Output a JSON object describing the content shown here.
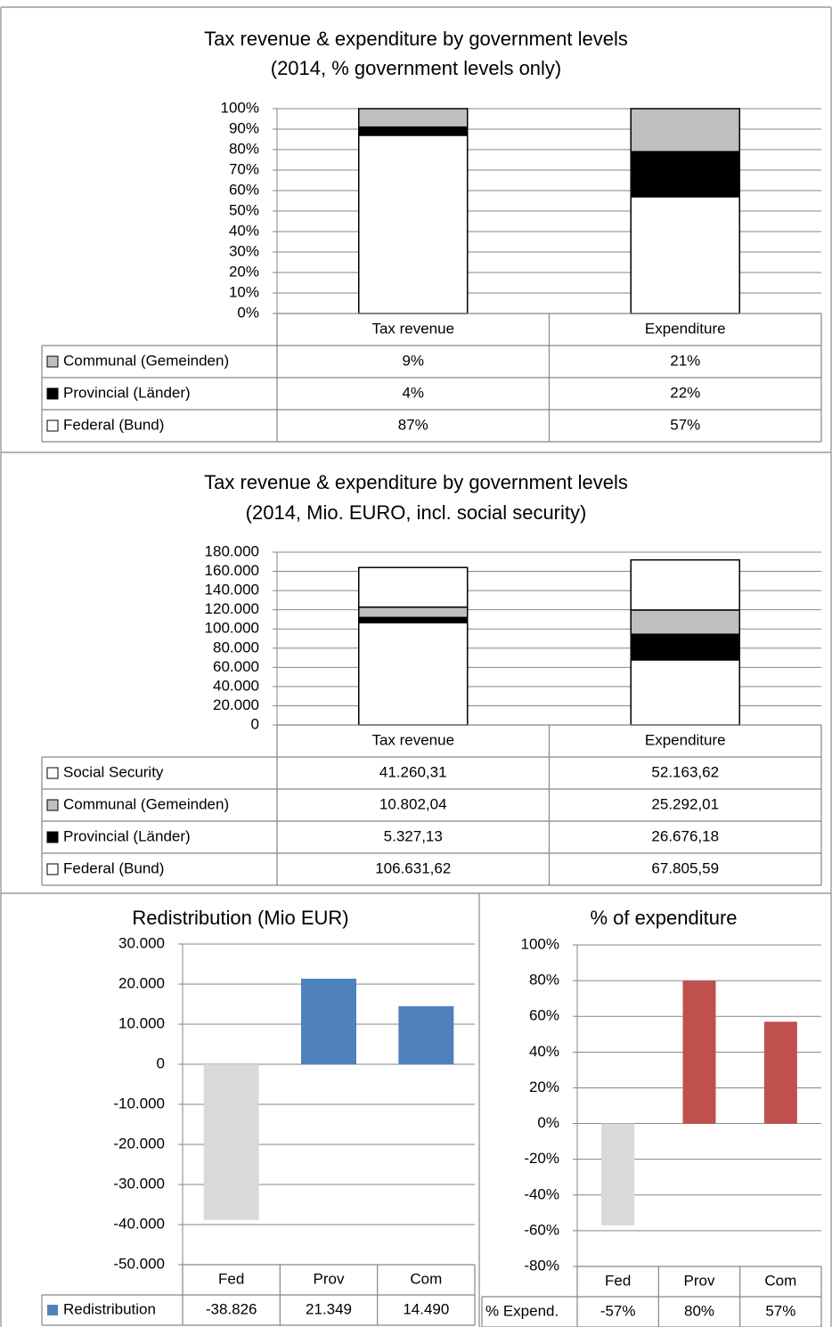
{
  "chart_data": [
    {
      "type": "stacked_bar",
      "title": "Tax revenue & expenditure by government levels",
      "subtitle": "(2014, % government levels only)",
      "categories": [
        "Tax revenue",
        "Expenditure"
      ],
      "series": [
        {
          "name": "Communal (Gemeinden)",
          "color": "#bfbfbf",
          "values": [
            9,
            21
          ],
          "value_labels": [
            "9%",
            "21%"
          ]
        },
        {
          "name": "Provincial (Länder)",
          "color": "#000000",
          "values": [
            4,
            22
          ],
          "value_labels": [
            "4%",
            "22%"
          ]
        },
        {
          "name": "Federal (Bund)",
          "color": "#ffffff",
          "values": [
            87,
            57
          ],
          "value_labels": [
            "87%",
            "57%"
          ]
        }
      ],
      "ylim": [
        0,
        100
      ],
      "yticks": [
        {
          "value": 0,
          "label": "0%"
        },
        {
          "value": 10,
          "label": "10%"
        },
        {
          "value": 20,
          "label": "20%"
        },
        {
          "value": 30,
          "label": "30%"
        },
        {
          "value": 40,
          "label": "40%"
        },
        {
          "value": 50,
          "label": "50%"
        },
        {
          "value": 60,
          "label": "60%"
        },
        {
          "value": 70,
          "label": "70%"
        },
        {
          "value": 80,
          "label": "80%"
        },
        {
          "value": 90,
          "label": "90%"
        },
        {
          "value": 100,
          "label": "100%"
        }
      ],
      "grid": true
    },
    {
      "type": "stacked_bar",
      "title": "Tax revenue & expenditure by government levels",
      "subtitle": "(2014, Mio. EURO, incl. social security)",
      "categories": [
        "Tax revenue",
        "Expenditure"
      ],
      "series": [
        {
          "name": "Social Security",
          "color": "#ffffff",
          "values": [
            41260.31,
            52163.62
          ],
          "value_labels": [
            "41.260,31",
            "52.163,62"
          ]
        },
        {
          "name": "Communal (Gemeinden)",
          "color": "#bfbfbf",
          "values": [
            10802.04,
            25292.01
          ],
          "value_labels": [
            "10.802,04",
            "25.292,01"
          ]
        },
        {
          "name": "Provincial (Länder)",
          "color": "#000000",
          "values": [
            5327.13,
            26676.18
          ],
          "value_labels": [
            "5.327,13",
            "26.676,18"
          ]
        },
        {
          "name": "Federal (Bund)",
          "color": "#ffffff",
          "values": [
            106631.62,
            67805.59
          ],
          "value_labels": [
            "106.631,62",
            "67.805,59"
          ]
        }
      ],
      "ylim": [
        0,
        180000
      ],
      "yticks": [
        0,
        {
          "value": 20000,
          "label": "20.000"
        },
        {
          "value": 40000,
          "label": "40.000"
        },
        {
          "value": 60000,
          "label": "60.000"
        },
        {
          "value": 80000,
          "label": "80.000"
        },
        {
          "value": 100000,
          "label": "100.000"
        },
        {
          "value": 120000,
          "label": "120.000"
        },
        {
          "value": 140000,
          "label": "140.000"
        },
        {
          "value": 160000,
          "label": "160.000"
        },
        {
          "value": 180000,
          "label": "180.000"
        }
      ],
      "grid": true
    },
    {
      "type": "bar",
      "title": "Redistribution (Mio EUR)",
      "categories": [
        "Fed",
        "Prov",
        "Com"
      ],
      "series": [
        {
          "name": "Redistribution",
          "color": "#4f81bd",
          "values": [
            -38826,
            21349,
            14490
          ],
          "value_labels": [
            "-38.826",
            "21.349",
            "14.490"
          ]
        }
      ],
      "negative_color": "#d9d9d9",
      "legend_marker": true,
      "ylim": [
        -50000,
        30000
      ],
      "yticks": [
        {
          "value": -50000,
          "label": "-50.000"
        },
        {
          "value": -40000,
          "label": "-40.000"
        },
        {
          "value": -30000,
          "label": "-30.000"
        },
        {
          "value": -20000,
          "label": "-20.000"
        },
        {
          "value": -10000,
          "label": "-10.000"
        },
        0,
        {
          "value": 10000,
          "label": "10.000"
        },
        {
          "value": 20000,
          "label": "20.000"
        },
        {
          "value": 30000,
          "label": "30.000"
        }
      ],
      "grid": true
    },
    {
      "type": "bar",
      "title": "% of expenditure",
      "categories": [
        "Fed",
        "Prov",
        "Com"
      ],
      "series": [
        {
          "name": "% Expend.",
          "color": "#c0504d",
          "values": [
            -57,
            80,
            57
          ],
          "value_labels": [
            "-57%",
            "80%",
            "57%"
          ]
        }
      ],
      "negative_color": "#d9d9d9",
      "legend_marker": false,
      "ylim": [
        -80,
        100
      ],
      "yticks": [
        {
          "value": -80,
          "label": "-80%"
        },
        {
          "value": -60,
          "label": "-60%"
        },
        {
          "value": -40,
          "label": "-40%"
        },
        {
          "value": -20,
          "label": "-20%"
        },
        {
          "value": 0,
          "label": "0%"
        },
        {
          "value": 20,
          "label": "20%"
        },
        {
          "value": 40,
          "label": "40%"
        },
        {
          "value": 60,
          "label": "60%"
        },
        {
          "value": 80,
          "label": "80%"
        },
        {
          "value": 100,
          "label": "100%"
        }
      ],
      "grid": true
    }
  ]
}
